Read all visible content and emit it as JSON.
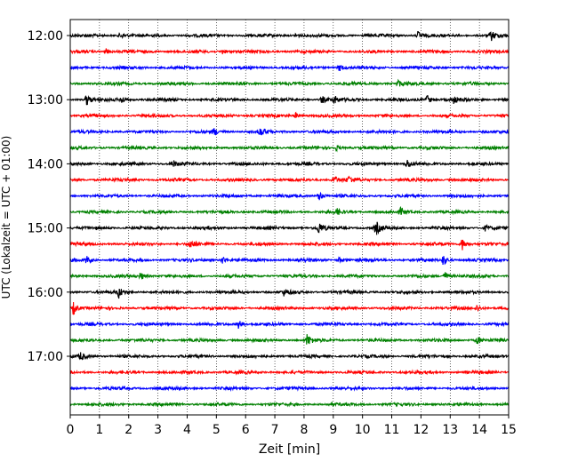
{
  "chart_data": {
    "type": "line",
    "title": "",
    "xlabel": "Zeit  [min]",
    "ylabel": "UTC (Lokalzeit = UTC + 01:00)",
    "xlim": [
      0,
      15
    ],
    "x_ticks": [
      "0",
      "1",
      "2",
      "3",
      "4",
      "5",
      "6",
      "7",
      "8",
      "9",
      "10",
      "11",
      "12",
      "13",
      "14",
      "15"
    ],
    "y_tick_labels": [
      "12:00",
      "13:00",
      "14:00",
      "15:00",
      "16:00",
      "17:00"
    ],
    "grid": "vertical dotted",
    "trace_colors": [
      "#000000",
      "#ff0000",
      "#0000ff",
      "#008000"
    ],
    "traces": [
      {
        "start": "12:00",
        "color": "#000000",
        "events": [
          [
            1.7,
            0.35
          ],
          [
            7.7,
            0.3
          ],
          [
            11.9,
            0.5
          ],
          [
            14.4,
            0.55
          ]
        ]
      },
      {
        "start": "12:15",
        "color": "#ff0000",
        "events": [
          [
            1.2,
            0.35
          ],
          [
            5.2,
            0.3
          ]
        ]
      },
      {
        "start": "12:30",
        "color": "#0000ff",
        "events": [
          [
            9.2,
            0.4
          ]
        ]
      },
      {
        "start": "12:45",
        "color": "#008000",
        "events": [
          [
            11.2,
            0.4
          ]
        ]
      },
      {
        "start": "13:00",
        "color": "#000000",
        "events": [
          [
            0.55,
            0.7
          ],
          [
            1.75,
            0.4
          ],
          [
            8.6,
            0.45
          ],
          [
            9.0,
            0.5
          ],
          [
            12.2,
            0.55
          ],
          [
            13.1,
            0.45
          ]
        ]
      },
      {
        "start": "13:15",
        "color": "#ff0000",
        "events": [
          [
            7.7,
            0.3
          ]
        ]
      },
      {
        "start": "13:30",
        "color": "#0000ff",
        "events": [
          [
            4.9,
            0.4
          ],
          [
            6.5,
            0.55
          ]
        ]
      },
      {
        "start": "13:45",
        "color": "#008000",
        "events": [
          [
            9.1,
            0.3
          ]
        ]
      },
      {
        "start": "14:00",
        "color": "#000000",
        "events": [
          [
            3.5,
            0.4
          ],
          [
            11.5,
            0.55
          ]
        ]
      },
      {
        "start": "14:15",
        "color": "#ff0000",
        "events": [
          [
            9.0,
            0.55
          ],
          [
            9.5,
            0.45
          ]
        ]
      },
      {
        "start": "14:30",
        "color": "#0000ff",
        "events": [
          [
            8.5,
            0.55
          ]
        ]
      },
      {
        "start": "14:45",
        "color": "#008000",
        "events": [
          [
            9.1,
            0.35
          ],
          [
            11.3,
            0.4
          ]
        ]
      },
      {
        "start": "15:00",
        "color": "#000000",
        "events": [
          [
            8.5,
            0.7
          ],
          [
            10.45,
            0.85
          ],
          [
            14.2,
            0.35
          ]
        ]
      },
      {
        "start": "15:15",
        "color": "#ff0000",
        "events": [
          [
            4.1,
            0.55
          ],
          [
            13.4,
            0.75
          ]
        ]
      },
      {
        "start": "15:30",
        "color": "#0000ff",
        "events": [
          [
            0.55,
            0.45
          ],
          [
            5.2,
            0.45
          ],
          [
            9.2,
            0.3
          ],
          [
            12.75,
            0.6
          ]
        ]
      },
      {
        "start": "15:45",
        "color": "#008000",
        "events": [
          [
            2.4,
            0.45
          ],
          [
            12.8,
            0.55
          ]
        ]
      },
      {
        "start": "16:00",
        "color": "#000000",
        "events": [
          [
            1.65,
            0.65
          ],
          [
            7.3,
            0.35
          ]
        ]
      },
      {
        "start": "16:15",
        "color": "#ff0000",
        "events": [
          [
            0.1,
            0.75
          ],
          [
            13.9,
            0.4
          ]
        ]
      },
      {
        "start": "16:30",
        "color": "#0000ff",
        "events": [
          [
            5.75,
            0.5
          ]
        ]
      },
      {
        "start": "16:45",
        "color": "#008000",
        "events": [
          [
            8.1,
            0.7
          ],
          [
            13.9,
            0.45
          ]
        ]
      },
      {
        "start": "17:00",
        "color": "#000000",
        "events": [
          [
            0.35,
            0.45
          ]
        ]
      },
      {
        "start": "17:15",
        "color": "#ff0000",
        "events": []
      },
      {
        "start": "17:30",
        "color": "#0000ff",
        "events": []
      },
      {
        "start": "17:45",
        "color": "#008000",
        "events": []
      }
    ]
  }
}
